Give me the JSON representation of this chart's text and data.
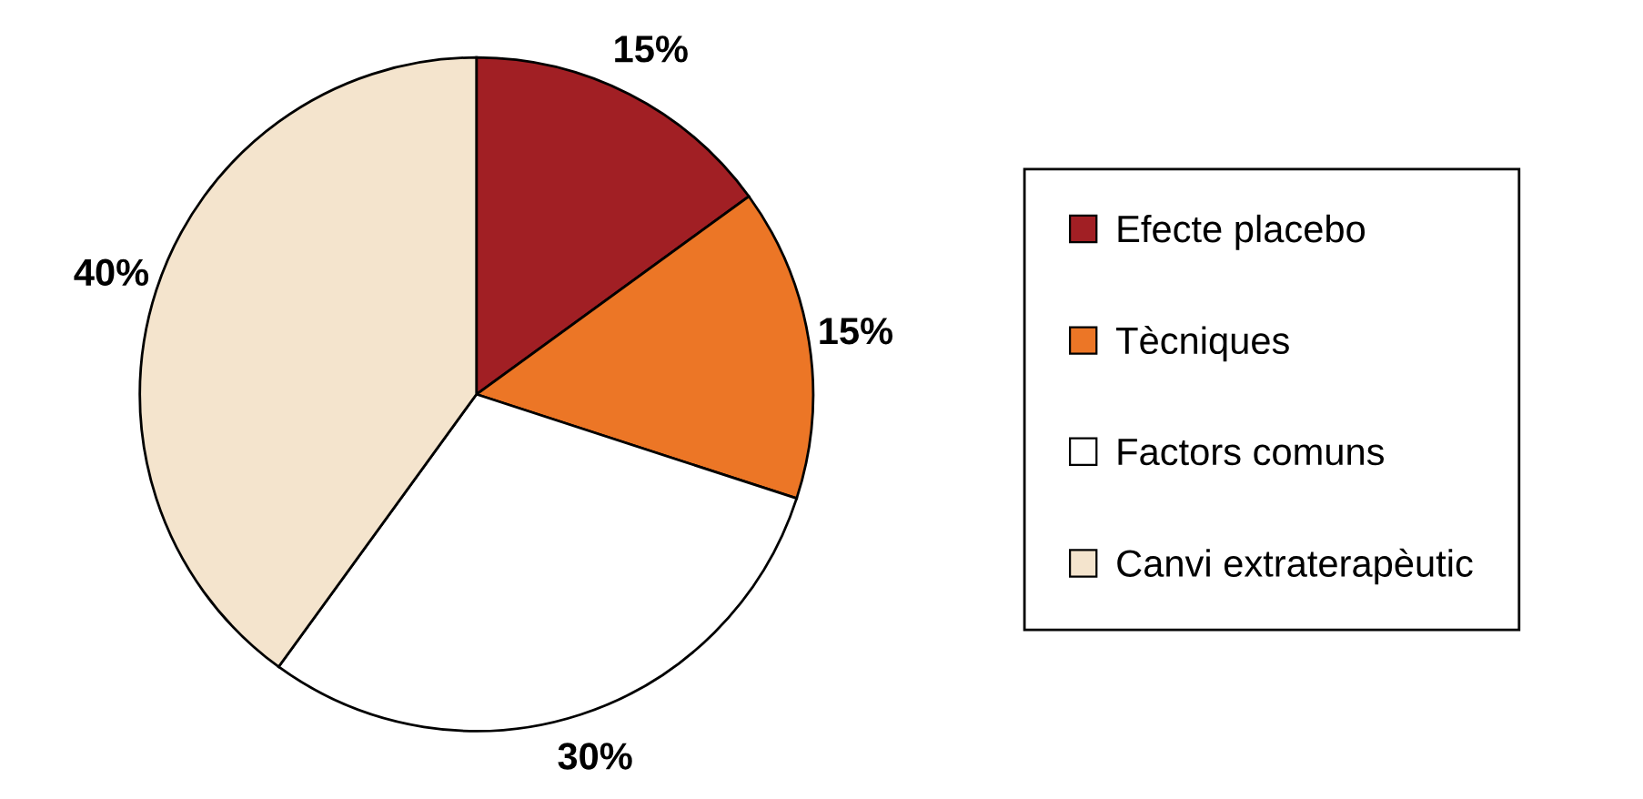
{
  "chart_data": {
    "type": "pie",
    "categories": [
      "Efecte placebo",
      "Tècniques",
      "Factors comuns",
      "Canvi extraterapèutic"
    ],
    "values": [
      15,
      15,
      30,
      40
    ],
    "colors": [
      "#a11f24",
      "#ec7626",
      "#ffffff",
      "#f4e4cd"
    ],
    "value_labels": [
      "15%",
      "15%",
      "30%",
      "40%"
    ],
    "legend": "right"
  }
}
